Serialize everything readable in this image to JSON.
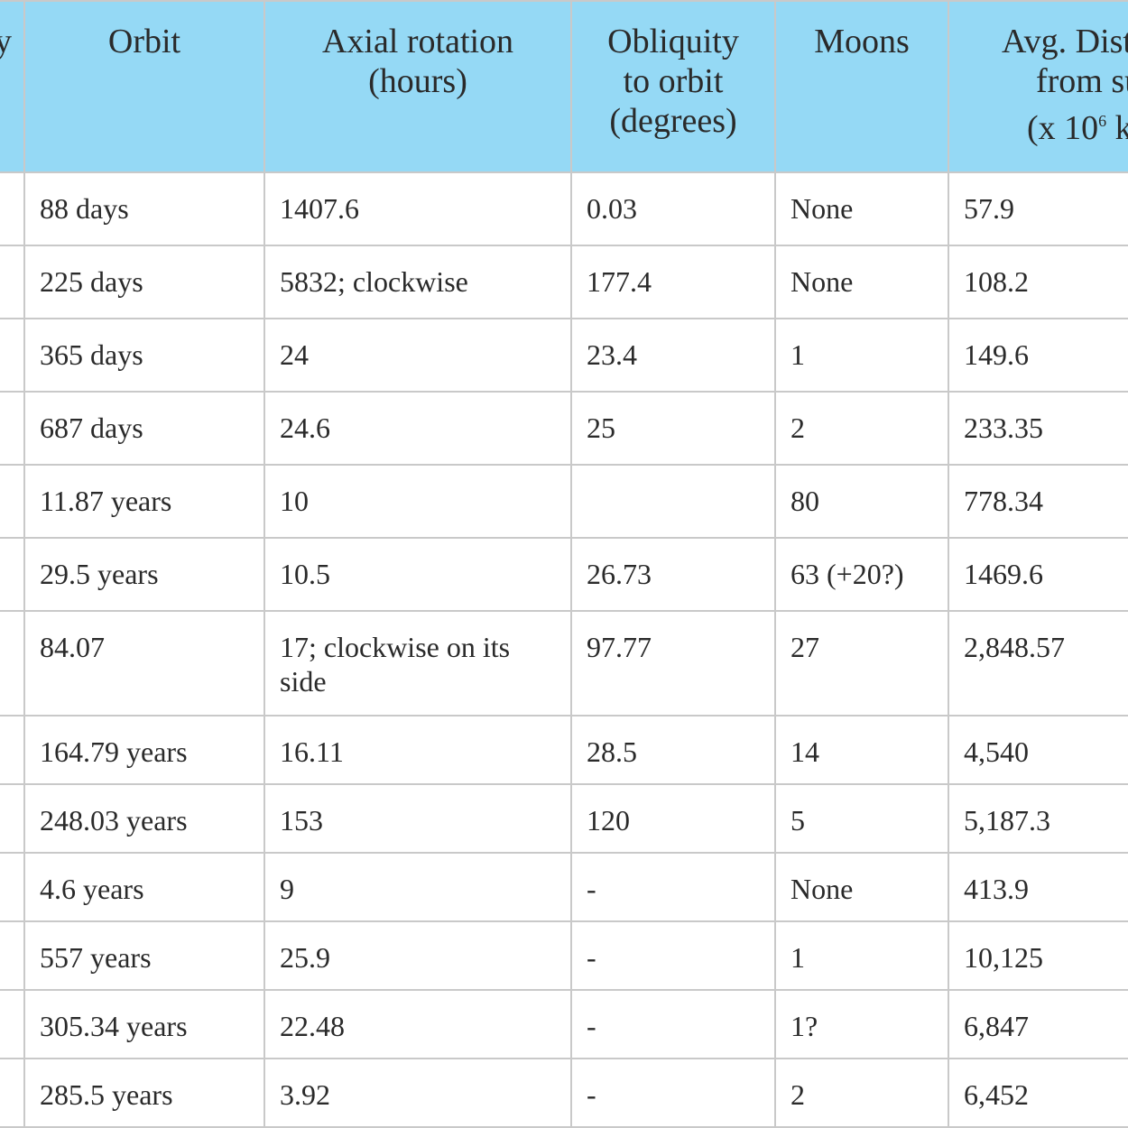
{
  "table": {
    "headers": {
      "partial_first": "y",
      "orbit": "Orbit",
      "axial_line1": "Axial rotation",
      "axial_line2": "(hours)",
      "obliq_line1": "Obliquity",
      "obliq_line2": "to orbit",
      "obliq_line3": "(degrees)",
      "moons": "Moons",
      "dist_line1": "Avg. Dista",
      "dist_line2": "from  su",
      "dist_line3a": "(x 10",
      "dist_exp": "6",
      "dist_line3b": " kn"
    },
    "rows": [
      {
        "orbit": "88 days",
        "axial": "1407.6",
        "obliquity": "0.03",
        "moons": "None",
        "distance": "57.9"
      },
      {
        "orbit": "225 days",
        "axial": "5832; clockwise",
        "obliquity": "177.4",
        "moons": "None",
        "distance": "108.2"
      },
      {
        "orbit": "365 days",
        "axial": "24",
        "obliquity": "23.4",
        "moons": "1",
        "distance": "149.6"
      },
      {
        "orbit": "687 days",
        "axial": "24.6",
        "obliquity": "25",
        "moons": "2",
        "distance": "233.35"
      },
      {
        "orbit": "11.87 years",
        "axial": "10",
        "obliquity": "",
        "moons": "80",
        "distance": "778.34"
      },
      {
        "orbit": "29.5 years",
        "axial": "10.5",
        "obliquity": "26.73",
        "moons": "63 (+20?)",
        "distance": "1469.6"
      },
      {
        "orbit": "84.07",
        "axial": " 17; clockwise on its side",
        "obliquity": "97.77",
        "moons": "27",
        "distance": "2,848.57"
      },
      {
        "orbit": "164.79 years",
        "axial": "16.11",
        "obliquity": "28.5",
        "moons": "14",
        "distance": "4,540"
      },
      {
        "orbit": "248.03 years",
        "axial": "153",
        "obliquity": "120",
        "moons": "5",
        "distance": "5,187.3"
      },
      {
        "orbit": "4.6 years",
        "axial": "9",
        "obliquity": "-",
        "moons": "None",
        "distance": "413.9"
      },
      {
        "orbit": "557 years",
        "axial": "25.9",
        "obliquity": "-",
        "moons": "1",
        "distance": "10,125"
      },
      {
        "orbit": "305.34 years",
        "axial": "22.48",
        "obliquity": "-",
        "moons": "1?",
        "distance": "6,847"
      },
      {
        "orbit": "285.5 years",
        "axial": "3.92",
        "obliquity": "-",
        "moons": "2",
        "distance": "6,452"
      }
    ]
  },
  "colors": {
    "header_bg": "#95d9f5",
    "grid_line": "#c9c9c9",
    "text": "#2a2a2a"
  }
}
